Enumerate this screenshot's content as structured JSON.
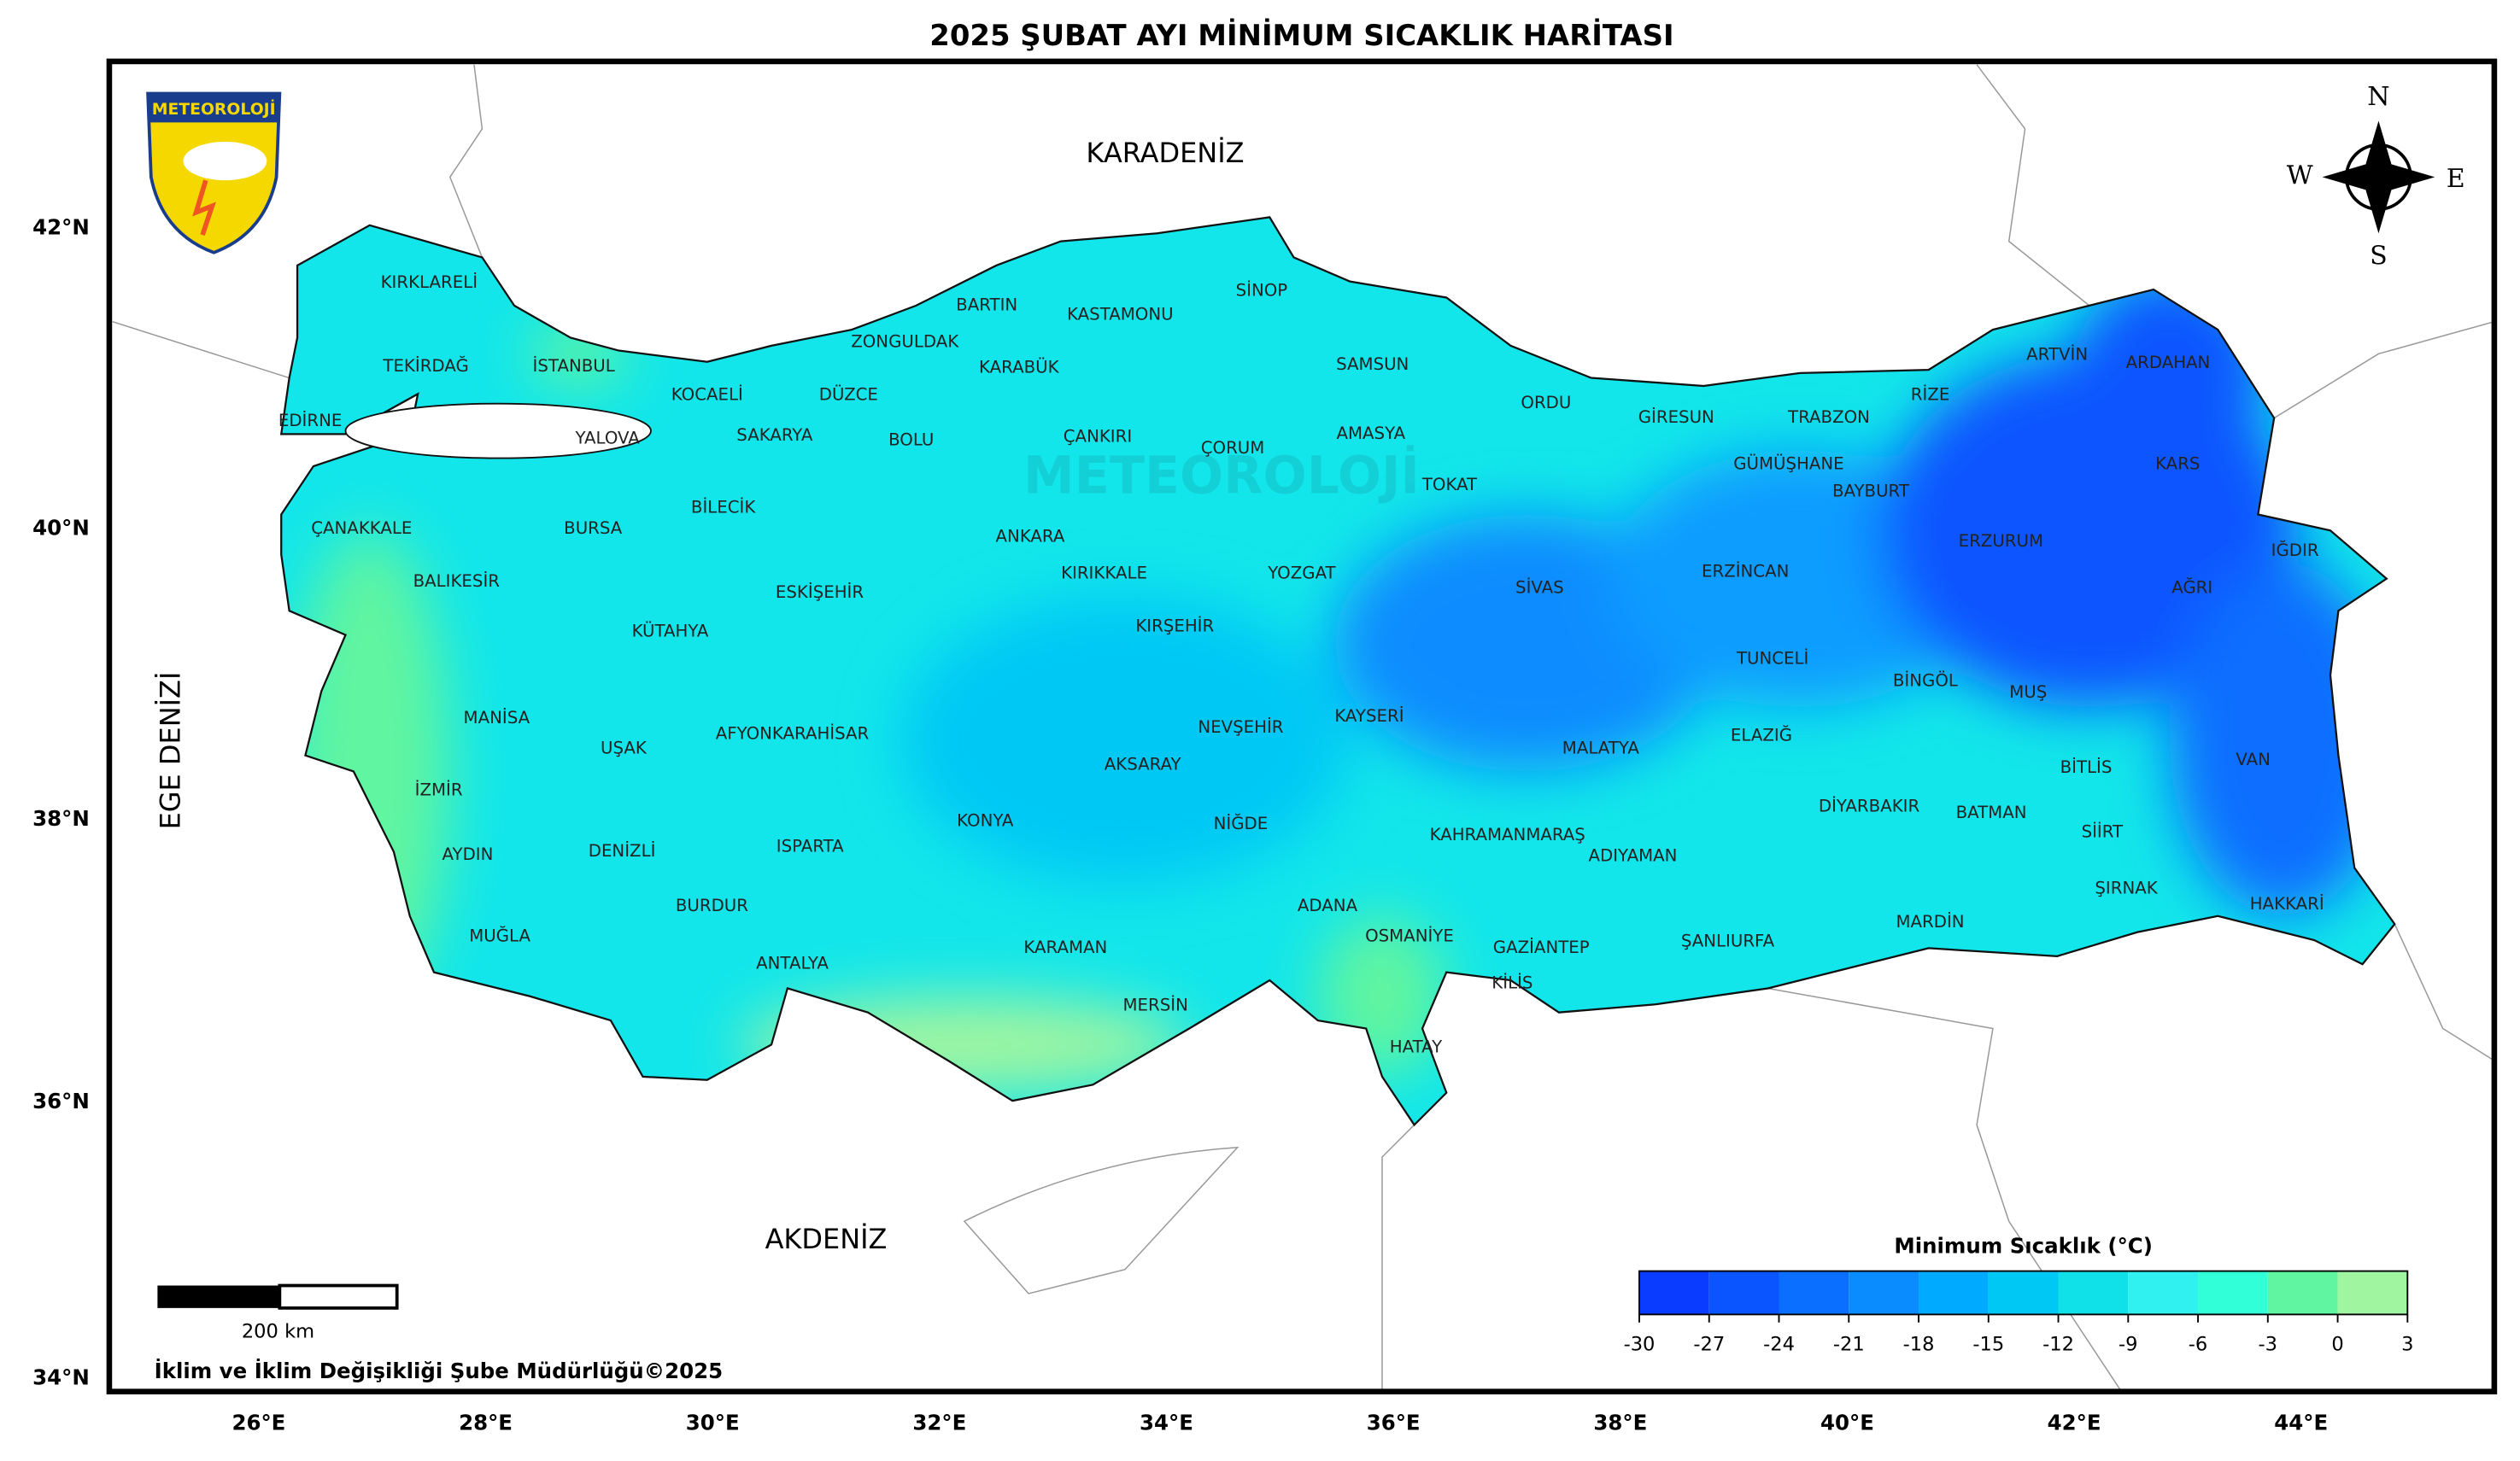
{
  "title": "2025 ŞUBAT AYI MİNİMUM SICAKLIK HARİTASI",
  "logo_text": "METEOROLOJİ",
  "watermark": "METEOROLOJİ",
  "seas": [
    "KARADENİZ",
    "AKDENİZ",
    "EGE DENİZİ"
  ],
  "compass": [
    "N",
    "S",
    "W",
    "E"
  ],
  "lat_labels": [
    "42°N",
    "40°N",
    "38°N",
    "36°N",
    "34°N"
  ],
  "lon_labels": [
    "26°E",
    "28°E",
    "30°E",
    "32°E",
    "34°E",
    "36°E",
    "38°E",
    "40°E",
    "42°E",
    "44°E"
  ],
  "scale_bar": "200 km",
  "footer": "İklim ve İklim Değişikliği Şube Müdürlüğü©2025",
  "colorbar": {
    "title": "Minimum Sıcaklık (°C)",
    "bounds": [
      -30,
      -27,
      -24,
      -21,
      -18,
      -15,
      -12,
      -9,
      -6,
      -3,
      0,
      3
    ],
    "colors": [
      "#0a3cff",
      "#0a55ff",
      "#0a6eff",
      "#0a8cff",
      "#00aaff",
      "#00c8f5",
      "#10e0e8",
      "#30f0f0",
      "#30ffd8",
      "#60f5a0",
      "#a0f5a0"
    ]
  },
  "provinces": [
    "KIRKLARELİ",
    "TEKİRDAĞ",
    "EDİRNE",
    "İSTANBUL",
    "KOCAELİ",
    "YALOVA",
    "SAKARYA",
    "DÜZCE",
    "ZONGULDAK",
    "BARTIN",
    "KARABÜK",
    "KASTAMONU",
    "SİNOP",
    "SAMSUN",
    "ÇANKIRI",
    "BOLU",
    "ÇORUM",
    "AMASYA",
    "TOKAT",
    "ORDU",
    "GİRESUN",
    "TRABZON",
    "RİZE",
    "ARTVİN",
    "ARDAHAN",
    "KARS",
    "IĞDIR",
    "AĞRI",
    "ERZURUM",
    "BAYBURT",
    "GÜMÜŞHANE",
    "ERZİNCAN",
    "SİVAS",
    "YOZGAT",
    "KIRIKKALE",
    "ANKARA",
    "BİLECİK",
    "BURSA",
    "ÇANAKKALE",
    "BALIKESİR",
    "KÜTAHYA",
    "ESKİŞEHİR",
    "KIRŞEHİR",
    "NEVŞEHİR",
    "KAYSERİ",
    "TUNCELİ",
    "BİNGÖL",
    "MUŞ",
    "ELAZIĞ",
    "MALATYA",
    "VAN",
    "BİTLİS",
    "DİYARBAKIR",
    "BATMAN",
    "SİİRT",
    "ŞIRNAK",
    "HAKKARİ",
    "MARDİN",
    "ŞANLIURFA",
    "ADIYAMAN",
    "KAHRAMANMARAŞ",
    "GAZİANTEP",
    "KİLİS",
    "OSMANİYE",
    "HATAY",
    "ADANA",
    "MERSİN",
    "KARAMAN",
    "NİĞDE",
    "AKSARAY",
    "KONYA",
    "ANTALYA",
    "ISPARTA",
    "BURDUR",
    "DENİZLİ",
    "AFYONKARAHİSAR",
    "UŞAK",
    "MANİSA",
    "İZMİR",
    "AYDIN",
    "MUĞLA"
  ]
}
